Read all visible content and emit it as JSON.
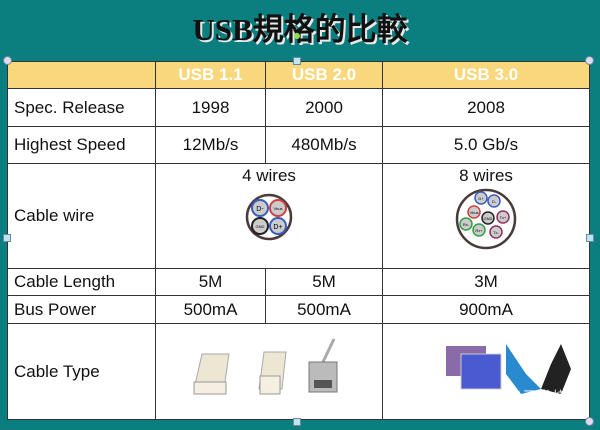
{
  "title": "USB規格的比較",
  "headers": [
    "",
    "USB 1.1",
    "USB 2.0",
    "USB 3.0"
  ],
  "rows": {
    "release": {
      "label": "Spec. Release",
      "v": [
        "1998",
        "2000",
        "2008"
      ]
    },
    "speed": {
      "label": "Highest Speed",
      "v": [
        "12Mb/s",
        "480Mb/s",
        "5.0 Gb/s"
      ]
    },
    "cable": {
      "label": "Cable wire",
      "v12": "4 wires",
      "v3": "8 wires",
      "wires4": [
        "D-",
        "Vbus",
        "GND",
        "D+"
      ],
      "wires8": [
        "D+",
        "D-",
        "Vbus",
        "GND",
        "Tx+",
        "Rx-",
        "Rx+",
        "Tx-"
      ]
    },
    "length": {
      "label": "Cable Length",
      "v": [
        "5M",
        "5M",
        "3M"
      ]
    },
    "power": {
      "label": "Bus Power",
      "v": [
        "500mA",
        "500mA",
        "900mA"
      ]
    },
    "type": {
      "label": "Cable Type"
    }
  },
  "watermark": {
    "name": "电子发烧友",
    "url": "www.elecfans.com"
  },
  "colors": {
    "background": "#0b7f7f",
    "header": "#f9d77c"
  }
}
